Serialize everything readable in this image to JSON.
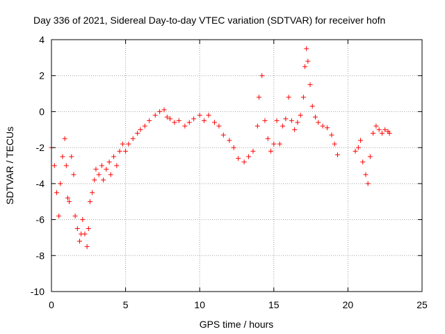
{
  "chart_data": {
    "type": "scatter",
    "title": "Day 336 of 2021, Sidereal Day-to-day VTEC variation (SDTVAR) for receiver hofn",
    "xlabel": "GPS time / hours",
    "ylabel": "SDTVAR / TECUs",
    "xlim": [
      0,
      25
    ],
    "ylim": [
      -10,
      4
    ],
    "xticks": [
      0,
      5,
      10,
      15,
      20,
      25
    ],
    "yticks": [
      -10,
      -8,
      -6,
      -4,
      -2,
      0,
      2,
      4
    ],
    "grid": true,
    "marker": "+",
    "color": "#ff0000",
    "series": [
      {
        "name": "SDTVAR",
        "segments": [
          {
            "x": [
              0.0,
              0.2,
              0.35,
              0.5,
              0.6,
              0.75,
              0.9,
              1.0,
              1.1,
              1.2,
              1.35,
              1.5,
              1.6,
              1.75,
              1.9,
              2.0,
              2.1,
              2.25,
              2.4,
              2.5,
              2.6,
              2.75,
              2.9,
              3.0,
              3.2,
              3.4,
              3.5,
              3.7,
              3.9,
              4.0,
              4.2,
              4.4,
              4.6,
              4.8,
              5.0,
              5.2,
              5.5,
              5.8,
              6.0,
              6.3,
              6.6,
              7.0,
              7.3,
              7.6,
              7.8,
              8.0,
              8.3,
              8.6,
              9.0,
              9.3,
              9.6,
              10.0,
              10.3,
              10.6,
              11.0,
              11.3,
              11.6,
              12.0,
              12.3,
              12.6,
              13.0,
              13.3,
              13.6,
              13.9,
              14.0,
              14.2,
              14.4,
              14.6,
              14.8,
              15.0,
              15.2,
              15.4,
              15.6,
              15.8,
              16.0,
              16.2,
              16.4,
              16.6,
              16.8,
              17.0,
              17.1,
              17.2,
              17.3,
              17.45,
              17.6,
              17.8,
              18.0,
              18.3,
              18.6,
              18.9,
              19.1,
              19.3
            ],
            "y": [
              -2.0,
              -3.0,
              -4.5,
              -5.8,
              -4.0,
              -2.5,
              -1.5,
              -3.0,
              -4.8,
              -5.0,
              -2.5,
              -3.5,
              -5.8,
              -6.5,
              -7.2,
              -6.8,
              -6.0,
              -6.8,
              -7.5,
              -6.5,
              -5.0,
              -4.5,
              -3.8,
              -3.2,
              -3.5,
              -3.0,
              -3.8,
              -3.2,
              -2.8,
              -3.5,
              -2.5,
              -3.0,
              -2.2,
              -1.8,
              -2.2,
              -1.8,
              -1.5,
              -1.2,
              -1.0,
              -0.8,
              -0.5,
              -0.2,
              0.0,
              0.1,
              -0.3,
              -0.4,
              -0.6,
              -0.5,
              -0.8,
              -0.6,
              -0.4,
              -0.2,
              -0.5,
              -0.2,
              -0.6,
              -0.8,
              -1.3,
              -1.6,
              -2.0,
              -2.6,
              -2.8,
              -2.5,
              -2.2,
              -0.8,
              0.8,
              2.0,
              -0.5,
              -1.5,
              -2.2,
              -1.8,
              -0.5,
              -1.8,
              -0.8,
              -0.4,
              0.8,
              -0.5,
              -1.0,
              -0.6,
              -0.2,
              0.8,
              2.5,
              3.5,
              2.8,
              1.5,
              0.3,
              -0.3,
              -0.6,
              -0.8,
              -0.9,
              -1.3,
              -1.8,
              -2.4
            ]
          },
          {
            "x": [
              20.5,
              20.7,
              20.85,
              21.0,
              21.2,
              21.35,
              21.5,
              21.7,
              21.9,
              22.1,
              22.3,
              22.5,
              22.7,
              22.8
            ],
            "y": [
              -2.2,
              -2.0,
              -1.6,
              -2.8,
              -3.5,
              -4.0,
              -2.5,
              -1.2,
              -0.8,
              -1.0,
              -1.2,
              -1.0,
              -1.1,
              -1.2
            ]
          }
        ]
      }
    ]
  }
}
